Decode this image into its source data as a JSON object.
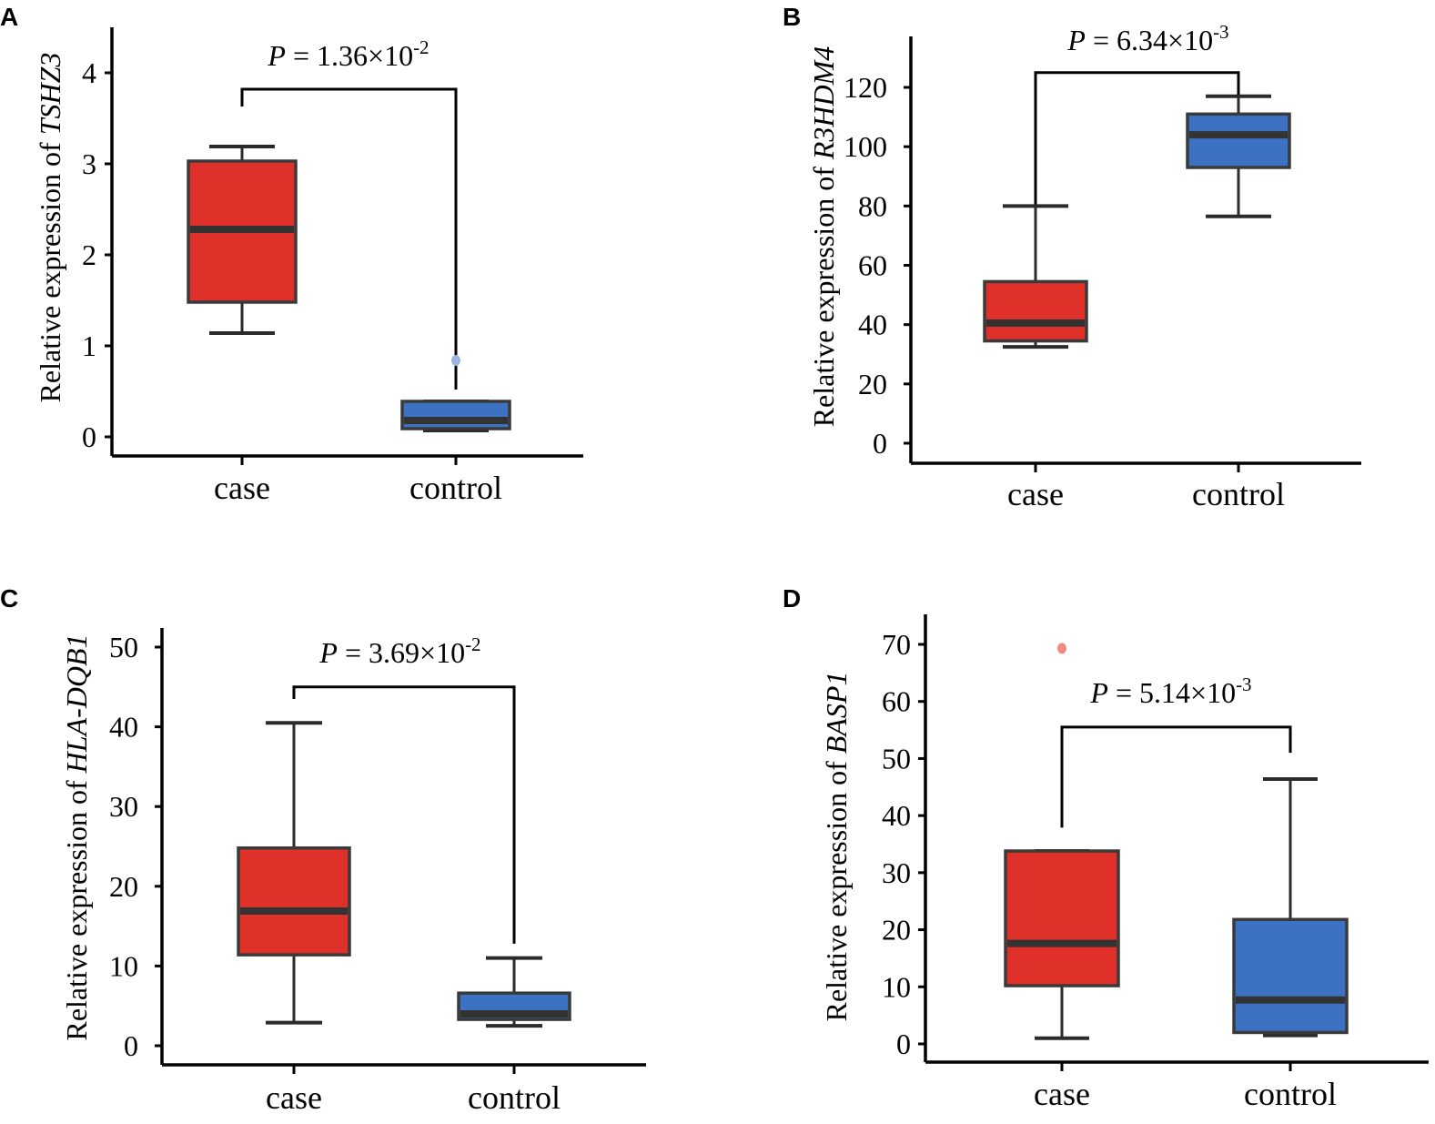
{
  "colors": {
    "case": "#e0302a",
    "control": "#3d72c2",
    "outlier_case": "#f08a80",
    "outlier_control": "#9ab6de"
  },
  "chart_data": [
    {
      "panel": "A",
      "type": "box",
      "ylabel_prefix": "Relative expression of ",
      "gene": "TSHZ3",
      "categories": [
        "case",
        "control"
      ],
      "ylim": [
        -0.2,
        4.5
      ],
      "yticks": [
        0,
        1,
        2,
        3,
        4
      ],
      "p_prefix": "P",
      "p_value": " = 1.36×10",
      "p_exp": "-2",
      "boxes": [
        {
          "group": "case",
          "min": 1.14,
          "q1": 1.48,
          "median": 2.28,
          "q3": 3.03,
          "max": 3.19,
          "outliers": []
        },
        {
          "group": "control",
          "min": 0.07,
          "q1": 0.09,
          "median": 0.18,
          "q3": 0.39,
          "max": 0.39,
          "outliers": [
            0.84
          ]
        }
      ],
      "bracket": {
        "y": 3.82,
        "left_end": 3.63,
        "right_end": 0.52
      }
    },
    {
      "panel": "B",
      "type": "box",
      "ylabel_prefix": "Relative expression of ",
      "gene": "R3HDM4",
      "categories": [
        "case",
        "control"
      ],
      "ylim": [
        -7,
        135
      ],
      "yticks": [
        0,
        20,
        40,
        60,
        80,
        100,
        120
      ],
      "p_prefix": "P",
      "p_value": " = 6.34×10",
      "p_exp": "-3",
      "boxes": [
        {
          "group": "case",
          "min": 32.5,
          "q1": 34.5,
          "median": 40.5,
          "q3": 54.5,
          "max": 80,
          "outliers": []
        },
        {
          "group": "control",
          "min": 76.5,
          "q1": 93,
          "median": 104,
          "q3": 111,
          "max": 117,
          "outliers": []
        }
      ],
      "bracket": {
        "y": 125,
        "left_end": 80,
        "right_end": 117
      }
    },
    {
      "panel": "C",
      "type": "box",
      "ylabel_prefix": "Relative expression of ",
      "gene": "HLA-DQB1",
      "categories": [
        "case",
        "control"
      ],
      "ylim": [
        -3,
        53.5
      ],
      "yticks": [
        0,
        10,
        20,
        30,
        40,
        50
      ],
      "p_prefix": "P",
      "p_value": " = 3.69×10",
      "p_exp": "-2",
      "boxes": [
        {
          "group": "case",
          "min": 2.9,
          "q1": 11.4,
          "median": 16.9,
          "q3": 24.8,
          "max": 40.5,
          "outliers": []
        },
        {
          "group": "control",
          "min": 2.5,
          "q1": 3.3,
          "median": 4.0,
          "q3": 6.6,
          "max": 11.0,
          "outliers": []
        }
      ],
      "bracket": {
        "y": 45,
        "left_end": 43.5,
        "right_end": 12.8
      }
    },
    {
      "panel": "D",
      "type": "box",
      "ylabel_prefix": "Relative expression of ",
      "gene": "BASP1",
      "categories": [
        "case",
        "control"
      ],
      "ylim": [
        -4,
        75
      ],
      "yticks": [
        0,
        10,
        20,
        30,
        40,
        50,
        60,
        70
      ],
      "p_prefix": "P",
      "p_value": " = 5.14×10",
      "p_exp": "-3",
      "boxes": [
        {
          "group": "case",
          "min": 1.0,
          "q1": 10.2,
          "median": 17.6,
          "q3": 33.8,
          "max": 33.8,
          "outliers": [
            69.3
          ]
        },
        {
          "group": "control",
          "min": 1.5,
          "q1": 2.0,
          "median": 7.7,
          "q3": 21.8,
          "max": 46.4,
          "outliers": []
        }
      ],
      "bracket": {
        "y": 55.5,
        "left_end": 37.9,
        "right_end": 51.0
      }
    }
  ]
}
